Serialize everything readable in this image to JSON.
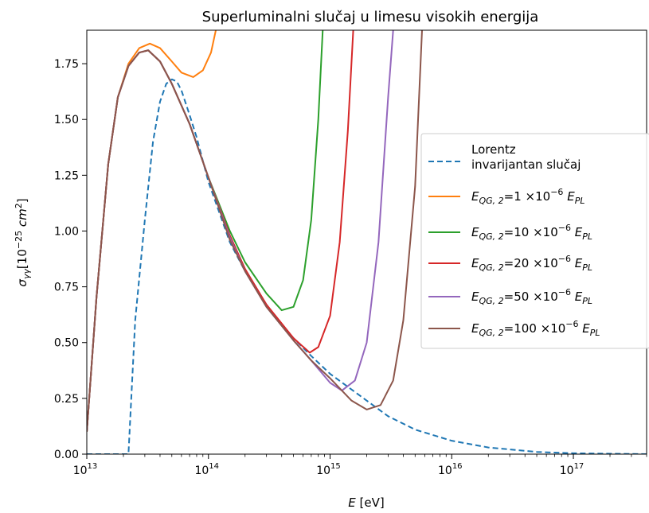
{
  "chart_data": {
    "type": "line",
    "title": "Superluminalni slučaj u limesu visokih energija",
    "xlabel": {
      "main": "E",
      "unit": " [eV]"
    },
    "ylabel": {
      "main": "σ",
      "sub": "γγ",
      "unit_pre": "[10",
      "unit_exp": "−25",
      "unit_mid": " cm",
      "unit_exp2": "2",
      "unit_post": "]"
    },
    "x_scale": "log",
    "xlim": [
      10000000000000.0,
      4e+17
    ],
    "ylim": [
      0,
      1.9
    ],
    "grid": false,
    "legend_position": "right",
    "x_ticks": [
      {
        "value": 10000000000000.0,
        "base": "10",
        "exp": "13"
      },
      {
        "value": 100000000000000.0,
        "base": "10",
        "exp": "14"
      },
      {
        "value": 1000000000000000.0,
        "base": "10",
        "exp": "15"
      },
      {
        "value": 1e+16,
        "base": "10",
        "exp": "16"
      },
      {
        "value": 1e+17,
        "base": "10",
        "exp": "17"
      }
    ],
    "y_ticks": [
      {
        "value": 0.0,
        "label": "0.00"
      },
      {
        "value": 0.25,
        "label": "0.25"
      },
      {
        "value": 0.5,
        "label": "0.50"
      },
      {
        "value": 0.75,
        "label": "0.75"
      },
      {
        "value": 1.0,
        "label": "1.00"
      },
      {
        "value": 1.25,
        "label": "1.25"
      },
      {
        "value": 1.5,
        "label": "1.50"
      },
      {
        "value": 1.75,
        "label": "1.75"
      }
    ],
    "series": [
      {
        "key": "lorentz",
        "legend_lines": [
          "Lorentz",
          "invarijantan slučaj"
        ],
        "color": "#1f77b4",
        "dash": true,
        "points": [
          [
            10000000000000.0,
            0
          ],
          [
            22000000000000.0,
            0
          ],
          [
            25000000000000.0,
            0.6
          ],
          [
            30000000000000.0,
            1.05
          ],
          [
            35000000000000.0,
            1.4
          ],
          [
            40000000000000.0,
            1.58
          ],
          [
            45000000000000.0,
            1.66
          ],
          [
            50000000000000.0,
            1.68
          ],
          [
            55000000000000.0,
            1.67
          ],
          [
            60000000000000.0,
            1.63
          ],
          [
            70000000000000.0,
            1.52
          ],
          [
            80000000000000.0,
            1.42
          ],
          [
            100000000000000.0,
            1.22
          ],
          [
            150000000000000.0,
            0.95
          ],
          [
            200000000000000.0,
            0.82
          ],
          [
            300000000000000.0,
            0.67
          ],
          [
            400000000000000.0,
            0.58
          ],
          [
            500000000000000.0,
            0.52
          ],
          [
            700000000000000.0,
            0.44
          ],
          [
            1000000000000000.0,
            0.36
          ],
          [
            2000000000000000.0,
            0.24
          ],
          [
            3000000000000000.0,
            0.17
          ],
          [
            5000000000000000.0,
            0.11
          ],
          [
            1e+16,
            0.06
          ],
          [
            2e+16,
            0.03
          ],
          [
            5e+16,
            0.01
          ],
          [
            1e+17,
            0.004
          ],
          [
            4e+17,
            0.0
          ]
        ]
      },
      {
        "key": "e1",
        "legend_main": "E",
        "legend_sub": "QG, 2",
        "legend_value": "=1 ×10",
        "legend_exp": "−6",
        "legend_tail_main": " E",
        "legend_tail_sub": "PL",
        "color": "#ff7f0e",
        "dash": false,
        "points": [
          [
            10000000000000.0,
            0.1
          ],
          [
            12000000000000.0,
            0.7
          ],
          [
            15000000000000.0,
            1.3
          ],
          [
            18000000000000.0,
            1.6
          ],
          [
            22000000000000.0,
            1.75
          ],
          [
            27000000000000.0,
            1.82
          ],
          [
            33000000000000.0,
            1.84
          ],
          [
            40000000000000.0,
            1.82
          ],
          [
            50000000000000.0,
            1.76
          ],
          [
            60000000000000.0,
            1.71
          ],
          [
            75000000000000.0,
            1.69
          ],
          [
            90000000000000.0,
            1.72
          ],
          [
            105000000000000.0,
            1.8
          ],
          [
            115000000000000.0,
            1.9
          ]
        ]
      },
      {
        "key": "e10",
        "legend_main": "E",
        "legend_sub": "QG, 2",
        "legend_value": "=10 ×10",
        "legend_exp": "−6",
        "legend_tail_main": " E",
        "legend_tail_sub": "PL",
        "color": "#2ca02c",
        "dash": false,
        "points": [
          [
            10000000000000.0,
            0.1
          ],
          [
            12000000000000.0,
            0.7
          ],
          [
            15000000000000.0,
            1.3
          ],
          [
            18000000000000.0,
            1.6
          ],
          [
            22000000000000.0,
            1.74
          ],
          [
            27000000000000.0,
            1.8
          ],
          [
            32000000000000.0,
            1.81
          ],
          [
            40000000000000.0,
            1.76
          ],
          [
            50000000000000.0,
            1.66
          ],
          [
            70000000000000.0,
            1.48
          ],
          [
            100000000000000.0,
            1.24
          ],
          [
            150000000000000.0,
            1.0
          ],
          [
            200000000000000.0,
            0.86
          ],
          [
            300000000000000.0,
            0.72
          ],
          [
            400000000000000.0,
            0.645
          ],
          [
            500000000000000.0,
            0.66
          ],
          [
            600000000000000.0,
            0.78
          ],
          [
            700000000000000.0,
            1.05
          ],
          [
            800000000000000.0,
            1.5
          ],
          [
            870000000000000.0,
            1.9
          ]
        ]
      },
      {
        "key": "e20",
        "legend_main": "E",
        "legend_sub": "QG, 2",
        "legend_value": "=20 ×10",
        "legend_exp": "−6",
        "legend_tail_main": " E",
        "legend_tail_sub": "PL",
        "color": "#d62728",
        "dash": false,
        "points": [
          [
            10000000000000.0,
            0.1
          ],
          [
            12000000000000.0,
            0.7
          ],
          [
            15000000000000.0,
            1.3
          ],
          [
            18000000000000.0,
            1.6
          ],
          [
            22000000000000.0,
            1.74
          ],
          [
            27000000000000.0,
            1.8
          ],
          [
            32000000000000.0,
            1.81
          ],
          [
            40000000000000.0,
            1.76
          ],
          [
            50000000000000.0,
            1.66
          ],
          [
            70000000000000.0,
            1.48
          ],
          [
            100000000000000.0,
            1.24
          ],
          [
            150000000000000.0,
            0.98
          ],
          [
            200000000000000.0,
            0.83
          ],
          [
            300000000000000.0,
            0.67
          ],
          [
            500000000000000.0,
            0.52
          ],
          [
            680000000000000.0,
            0.455
          ],
          [
            800000000000000.0,
            0.48
          ],
          [
            1000000000000000.0,
            0.62
          ],
          [
            1200000000000000.0,
            0.95
          ],
          [
            1400000000000000.0,
            1.45
          ],
          [
            1550000000000000.0,
            1.9
          ]
        ]
      },
      {
        "key": "e50",
        "legend_main": "E",
        "legend_sub": "QG, 2",
        "legend_value": "=50 ×10",
        "legend_exp": "−6",
        "legend_tail_main": " E",
        "legend_tail_sub": "PL",
        "color": "#9467bd",
        "dash": false,
        "points": [
          [
            10000000000000.0,
            0.1
          ],
          [
            12000000000000.0,
            0.7
          ],
          [
            15000000000000.0,
            1.3
          ],
          [
            18000000000000.0,
            1.6
          ],
          [
            22000000000000.0,
            1.74
          ],
          [
            27000000000000.0,
            1.8
          ],
          [
            32000000000000.0,
            1.81
          ],
          [
            40000000000000.0,
            1.76
          ],
          [
            50000000000000.0,
            1.66
          ],
          [
            70000000000000.0,
            1.48
          ],
          [
            100000000000000.0,
            1.24
          ],
          [
            150000000000000.0,
            0.97
          ],
          [
            200000000000000.0,
            0.82
          ],
          [
            300000000000000.0,
            0.66
          ],
          [
            500000000000000.0,
            0.51
          ],
          [
            700000000000000.0,
            0.42
          ],
          [
            1000000000000000.0,
            0.32
          ],
          [
            1250000000000000.0,
            0.285
          ],
          [
            1600000000000000.0,
            0.33
          ],
          [
            2000000000000000.0,
            0.5
          ],
          [
            2500000000000000.0,
            0.95
          ],
          [
            3000000000000000.0,
            1.6
          ],
          [
            3300000000000000.0,
            1.9
          ]
        ]
      },
      {
        "key": "e100",
        "legend_main": "E",
        "legend_sub": "QG, 2",
        "legend_value": "=100 ×10",
        "legend_exp": "−6",
        "legend_tail_main": " E",
        "legend_tail_sub": "PL",
        "color": "#8c564b",
        "dash": false,
        "points": [
          [
            10000000000000.0,
            0.1
          ],
          [
            12000000000000.0,
            0.7
          ],
          [
            15000000000000.0,
            1.3
          ],
          [
            18000000000000.0,
            1.6
          ],
          [
            22000000000000.0,
            1.74
          ],
          [
            27000000000000.0,
            1.8
          ],
          [
            32000000000000.0,
            1.81
          ],
          [
            40000000000000.0,
            1.76
          ],
          [
            50000000000000.0,
            1.66
          ],
          [
            70000000000000.0,
            1.48
          ],
          [
            100000000000000.0,
            1.24
          ],
          [
            150000000000000.0,
            0.96
          ],
          [
            200000000000000.0,
            0.82
          ],
          [
            300000000000000.0,
            0.66
          ],
          [
            500000000000000.0,
            0.51
          ],
          [
            700000000000000.0,
            0.42
          ],
          [
            1000000000000000.0,
            0.34
          ],
          [
            1500000000000000.0,
            0.24
          ],
          [
            2000000000000000.0,
            0.2
          ],
          [
            2600000000000000.0,
            0.22
          ],
          [
            3300000000000000.0,
            0.33
          ],
          [
            4000000000000000.0,
            0.6
          ],
          [
            5000000000000000.0,
            1.2
          ],
          [
            5700000000000000.0,
            1.9
          ]
        ]
      }
    ]
  }
}
